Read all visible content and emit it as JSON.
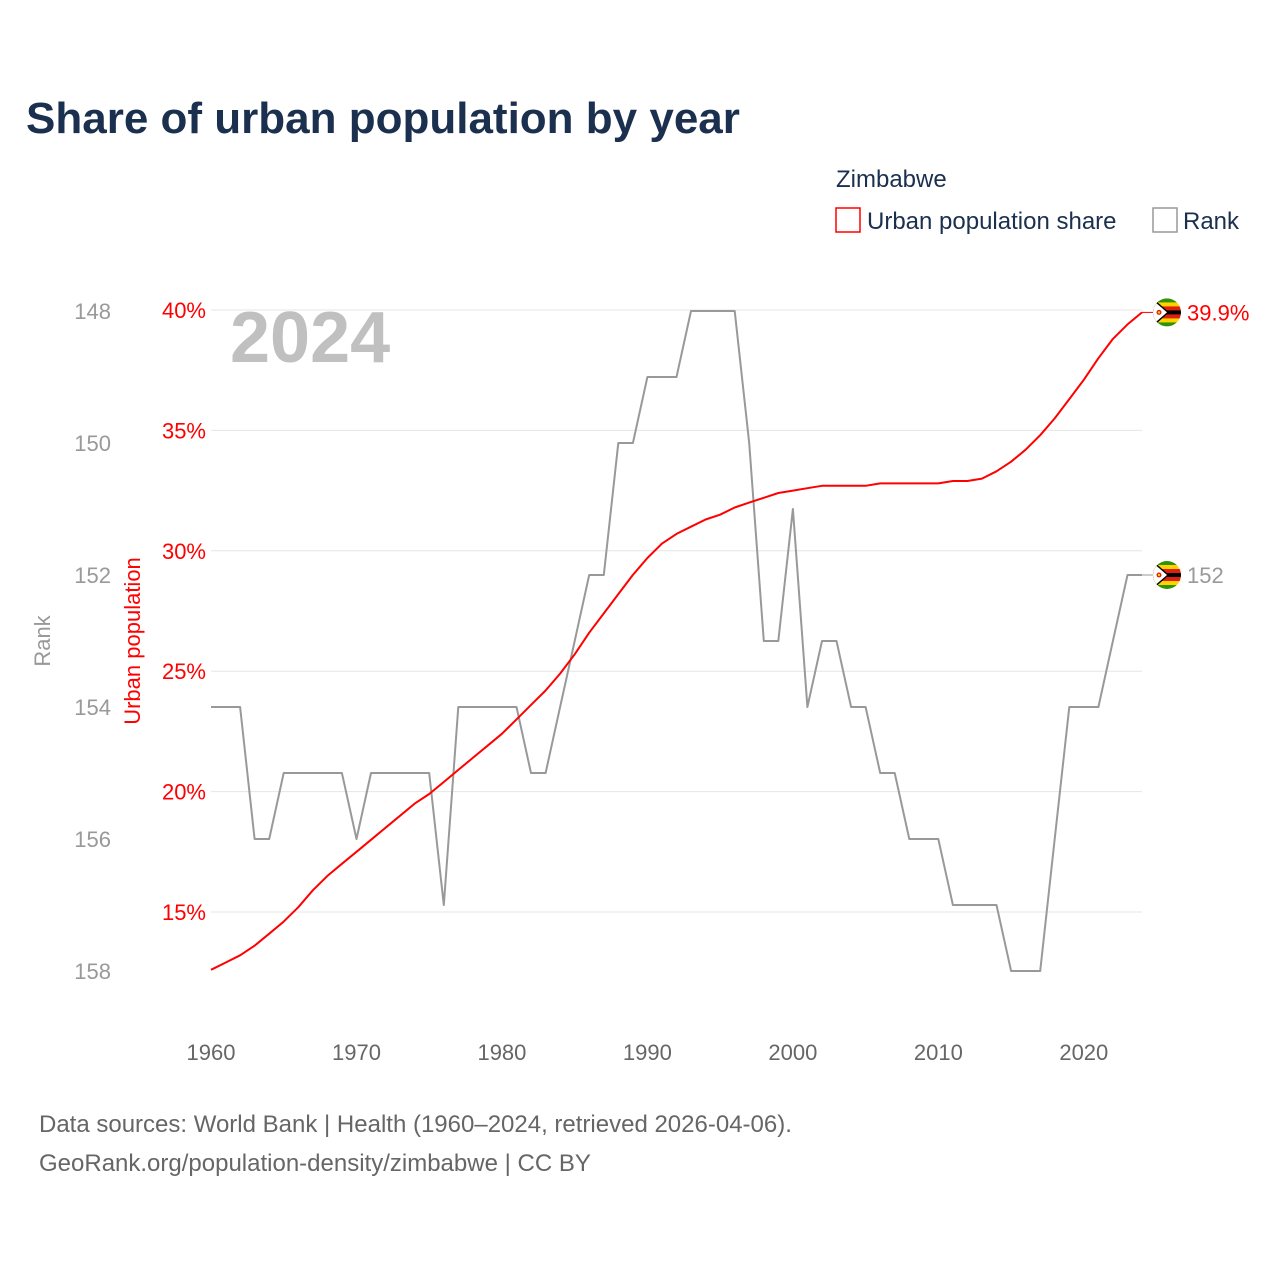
{
  "chart_data": {
    "type": "line",
    "title": "Share of urban population by year",
    "year_label": "2024",
    "legend": {
      "title": "Zimbabwe",
      "placement": "top-right",
      "entries": [
        "Urban population share",
        "Rank"
      ]
    },
    "xlabel": "",
    "ylabel_left_outer": "Rank",
    "ylabel_left_inner": "Urban population",
    "x_ticks": [
      "1960",
      "1970",
      "1980",
      "1990",
      "2000",
      "2010",
      "2020"
    ],
    "pct_ticks": [
      "15%",
      "20%",
      "25%",
      "30%",
      "35%",
      "40%"
    ],
    "pct_tick_values": [
      15,
      20,
      25,
      30,
      35,
      40
    ],
    "rank_ticks": [
      "148",
      "150",
      "152",
      "154",
      "156",
      "158"
    ],
    "rank_tick_values": [
      148,
      150,
      152,
      154,
      156,
      158
    ],
    "xlim": [
      1960,
      2024
    ],
    "pct_ylim": [
      12.5,
      40
    ],
    "rank_ylim": [
      148,
      158
    ],
    "x": [
      1960,
      1961,
      1962,
      1963,
      1964,
      1965,
      1966,
      1967,
      1968,
      1969,
      1970,
      1971,
      1972,
      1973,
      1974,
      1975,
      1976,
      1977,
      1978,
      1979,
      1980,
      1981,
      1982,
      1983,
      1984,
      1985,
      1986,
      1987,
      1988,
      1989,
      1990,
      1991,
      1992,
      1993,
      1994,
      1995,
      1996,
      1997,
      1998,
      1999,
      2000,
      2001,
      2002,
      2003,
      2004,
      2005,
      2006,
      2007,
      2008,
      2009,
      2010,
      2011,
      2012,
      2013,
      2014,
      2015,
      2016,
      2017,
      2018,
      2019,
      2020,
      2021,
      2022,
      2023,
      2024
    ],
    "series": [
      {
        "name": "Urban population share",
        "color": "#ff0000",
        "axis": "pct",
        "values": [
          12.6,
          12.9,
          13.2,
          13.6,
          14.1,
          14.6,
          15.2,
          15.9,
          16.5,
          17.0,
          17.5,
          18.0,
          18.5,
          19.0,
          19.5,
          19.9,
          20.4,
          20.9,
          21.4,
          21.9,
          22.4,
          23.0,
          23.6,
          24.2,
          24.9,
          25.7,
          26.6,
          27.4,
          28.2,
          29.0,
          29.7,
          30.3,
          30.7,
          31.0,
          31.3,
          31.5,
          31.8,
          32.0,
          32.2,
          32.4,
          32.5,
          32.6,
          32.7,
          32.7,
          32.7,
          32.7,
          32.8,
          32.8,
          32.8,
          32.8,
          32.8,
          32.9,
          32.9,
          33.0,
          33.3,
          33.7,
          34.2,
          34.8,
          35.5,
          36.3,
          37.1,
          38.0,
          38.8,
          39.4,
          39.9
        ],
        "end_label": "39.9%"
      },
      {
        "name": "Rank",
        "color": "#999999",
        "axis": "rank",
        "values": [
          154,
          154,
          154,
          156,
          156,
          155,
          155,
          155,
          155,
          155,
          156,
          155,
          155,
          155,
          155,
          155,
          157,
          154,
          154,
          154,
          154,
          154,
          155,
          155,
          154,
          153,
          152,
          152,
          150,
          150,
          149,
          149,
          149,
          148,
          148,
          148,
          148,
          150,
          153,
          153,
          151,
          154,
          153,
          153,
          154,
          154,
          155,
          155,
          156,
          156,
          156,
          157,
          157,
          157,
          157,
          158,
          158,
          158,
          156,
          154,
          154,
          154,
          153,
          152,
          152
        ],
        "end_label": "152"
      }
    ],
    "grid": true
  },
  "footer": {
    "source": "Data sources: World Bank | Health (1960–2024, retrieved 2026-04-06).",
    "credit": "GeoRank.org/population-density/zimbabwe | CC BY"
  },
  "colors": {
    "title": "#1b2f4e",
    "urban": "#ff0000",
    "rank": "#999999",
    "grid": "#e6e6e6",
    "year": "#c0c0c0"
  }
}
